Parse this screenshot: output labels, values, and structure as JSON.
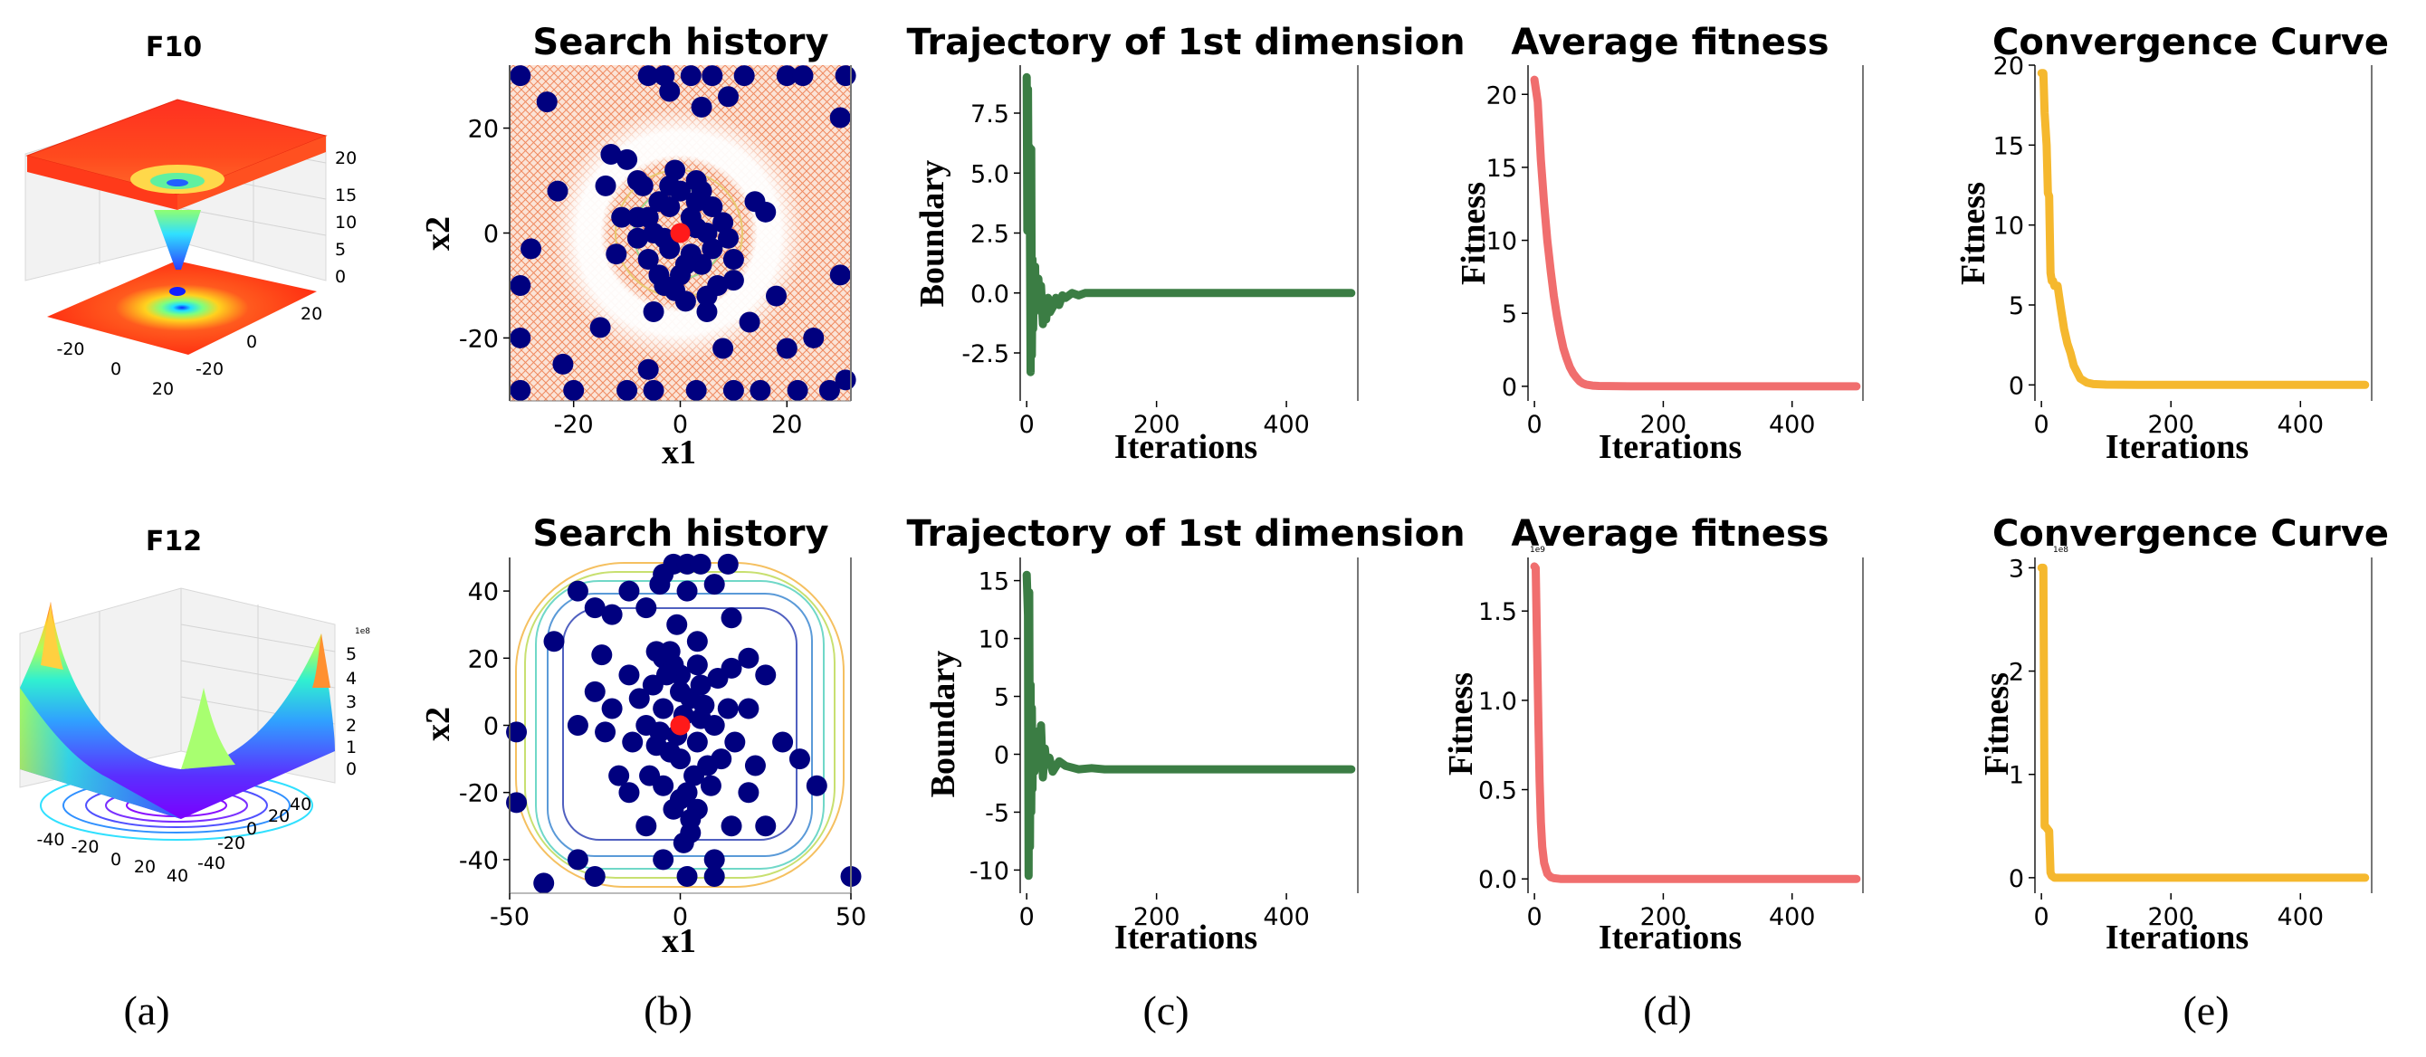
{
  "panel_labels": [
    "(a)",
    "(b)",
    "(c)",
    "(d)",
    "(e)"
  ],
  "colors": {
    "trajectory": "#3b7d44",
    "average": "#f06e6e",
    "convergence": "#f5b82e",
    "search_points": "#00007f",
    "best_point": "#ff1a1a",
    "f10_grid": "#f07a50"
  },
  "chart_data": [
    {
      "id": "f10-surface",
      "type": "surface3d",
      "title": "F10",
      "colormap": "rainbow",
      "xticks": [
        "-20",
        "0",
        "20"
      ],
      "yticks": [
        "20",
        "0",
        "-20"
      ],
      "zticks": [
        "0",
        "5",
        "10",
        "15",
        "20"
      ],
      "zlim": [
        0,
        21
      ]
    },
    {
      "id": "f10-search",
      "type": "scatter",
      "title": "Search history",
      "xlabel": "x1",
      "ylabel": "x2",
      "xlim": [
        -32,
        32
      ],
      "ylim": [
        -32,
        32
      ],
      "xticks": [
        "-20",
        "0",
        "20"
      ],
      "yticks": [
        "20",
        "0",
        "-20"
      ],
      "best": [
        0,
        0
      ],
      "points": [
        [
          -30,
          -30
        ],
        [
          -20,
          -30
        ],
        [
          -10,
          -30
        ],
        [
          -5,
          -30
        ],
        [
          3,
          -30
        ],
        [
          10,
          -30
        ],
        [
          15,
          -30
        ],
        [
          22,
          -30
        ],
        [
          28,
          -30
        ],
        [
          -30,
          -20
        ],
        [
          -30,
          -10
        ],
        [
          -30,
          30
        ],
        [
          -25,
          25
        ],
        [
          -6,
          30
        ],
        [
          -3,
          30
        ],
        [
          2,
          30
        ],
        [
          6,
          30
        ],
        [
          12,
          30
        ],
        [
          20,
          30
        ],
        [
          23,
          30
        ],
        [
          31,
          30
        ],
        [
          30,
          22
        ],
        [
          -2,
          27
        ],
        [
          4,
          24
        ],
        [
          9,
          26
        ],
        [
          -13,
          15
        ],
        [
          -10,
          14
        ],
        [
          -8,
          10
        ],
        [
          -14,
          9
        ],
        [
          -11,
          3
        ],
        [
          -8,
          -1
        ],
        [
          -12,
          -4
        ],
        [
          14,
          6
        ],
        [
          16,
          4
        ],
        [
          10,
          -5
        ],
        [
          -15,
          -18
        ],
        [
          -22,
          -25
        ],
        [
          -6,
          -26
        ],
        [
          13,
          -17
        ],
        [
          18,
          -12
        ],
        [
          25,
          -20
        ],
        [
          20,
          -22
        ],
        [
          8,
          -22
        ],
        [
          5,
          -15
        ],
        [
          -5,
          -15
        ],
        [
          -23,
          8
        ],
        [
          -28,
          -3
        ],
        [
          31,
          -28
        ],
        [
          30,
          -8
        ],
        [
          -2,
          -3
        ],
        [
          2,
          3
        ],
        [
          -4,
          6
        ],
        [
          4,
          -6
        ],
        [
          0,
          8
        ],
        [
          0,
          -8
        ],
        [
          -5,
          0
        ],
        [
          5,
          0
        ],
        [
          3,
          10
        ],
        [
          -3,
          -10
        ],
        [
          6,
          5
        ],
        [
          -6,
          -5
        ],
        [
          7,
          -10
        ],
        [
          -7,
          9
        ],
        [
          1,
          -13
        ],
        [
          -1,
          12
        ],
        [
          8,
          2
        ],
        [
          -8,
          3
        ],
        [
          2,
          -4
        ],
        [
          -2,
          5
        ],
        [
          4,
          8
        ],
        [
          -4,
          -8
        ],
        [
          6,
          -3
        ],
        [
          -6,
          3
        ],
        [
          3,
          1
        ],
        [
          -3,
          -1
        ],
        [
          1,
          -6
        ],
        [
          -1,
          -11
        ],
        [
          9,
          -1
        ],
        [
          10,
          -9
        ],
        [
          5,
          -12
        ],
        [
          -2,
          9
        ],
        [
          3,
          6
        ]
      ]
    },
    {
      "id": "f10-trajectory",
      "type": "line",
      "title": "Trajectory of 1st dimension",
      "xlabel": "Iterations",
      "ylabel": "Boundary",
      "xlim": [
        -10,
        510
      ],
      "ylim": [
        -4.5,
        9.5
      ],
      "xticks": [
        "0",
        "200",
        "400"
      ],
      "yticks": [
        "7.5",
        "5.0",
        "2.5",
        "0.0",
        "-2.5"
      ],
      "x": [
        0,
        1,
        2,
        3,
        4,
        5,
        6,
        7,
        8,
        9,
        10,
        11,
        12,
        13,
        14,
        15,
        16,
        18,
        20,
        22,
        25,
        28,
        30,
        33,
        36,
        40,
        45,
        50,
        55,
        60,
        70,
        80,
        90,
        100,
        120,
        150,
        200,
        300,
        400,
        500
      ],
      "values": [
        9.0,
        2.6,
        8.5,
        3.5,
        6.1,
        2.5,
        -3.3,
        6.0,
        -2.6,
        1.4,
        -1.5,
        0.8,
        -0.8,
        1.1,
        -0.5,
        0.4,
        -0.6,
        0.6,
        -0.4,
        0.3,
        -1.3,
        -0.4,
        -1.1,
        -0.2,
        -0.8,
        -0.6,
        -0.2,
        -0.5,
        -0.1,
        -0.2,
        0.0,
        -0.1,
        0.0,
        0.0,
        0.0,
        0.0,
        0.0,
        0.0,
        0.0,
        0.0
      ]
    },
    {
      "id": "f10-average",
      "type": "line",
      "title": "Average fitness",
      "xlabel": "Iterations",
      "ylabel": "Fitness",
      "xlim": [
        -10,
        510
      ],
      "ylim": [
        -1.0,
        22.0
      ],
      "xticks": [
        "0",
        "200",
        "400"
      ],
      "yticks": [
        "20",
        "15",
        "10",
        "5",
        "0"
      ],
      "x": [
        0,
        5,
        10,
        15,
        20,
        25,
        30,
        35,
        40,
        45,
        50,
        55,
        60,
        65,
        70,
        75,
        80,
        90,
        100,
        150,
        200,
        300,
        400,
        500
      ],
      "values": [
        21.0,
        19.5,
        15.5,
        12.5,
        10.0,
        8.0,
        6.2,
        4.8,
        3.6,
        2.6,
        1.9,
        1.3,
        0.9,
        0.6,
        0.35,
        0.2,
        0.12,
        0.05,
        0.02,
        0.0,
        0.0,
        0.0,
        0.0,
        0.0
      ]
    },
    {
      "id": "f10-convergence",
      "type": "line",
      "title": "Convergence Curve",
      "xlabel": "Iterations",
      "ylabel": "Fitness",
      "xlim": [
        -10,
        510
      ],
      "ylim": [
        -1.0,
        20.0
      ],
      "xticks": [
        "0",
        "200",
        "400"
      ],
      "yticks": [
        "20",
        "15",
        "10",
        "5",
        "0"
      ],
      "x": [
        0,
        3,
        5,
        8,
        10,
        12,
        14,
        16,
        18,
        20,
        25,
        30,
        35,
        40,
        45,
        50,
        55,
        60,
        70,
        80,
        100,
        150,
        500
      ],
      "values": [
        19.5,
        19.5,
        17.0,
        15.0,
        12.0,
        11.8,
        7.0,
        6.5,
        6.5,
        6.2,
        6.2,
        4.8,
        3.5,
        2.6,
        2.0,
        1.2,
        0.8,
        0.4,
        0.15,
        0.05,
        0.02,
        0.0,
        0.0
      ]
    },
    {
      "id": "f12-surface",
      "type": "surface3d",
      "title": "F12",
      "colormap": "rainbow",
      "xticks": [
        "-40",
        "-20",
        "0",
        "20",
        "40"
      ],
      "yticks": [
        "40",
        "20",
        "0",
        "-20",
        "-40"
      ],
      "zticks": [
        "0",
        "1",
        "2",
        "3",
        "4",
        "5"
      ],
      "zlim": [
        0,
        5.2
      ],
      "zscale": "1e8"
    },
    {
      "id": "f12-search",
      "type": "scatter",
      "title": "Search history",
      "xlabel": "x1",
      "ylabel": "x2",
      "xlim": [
        -50,
        50
      ],
      "ylim": [
        -50,
        50
      ],
      "xticks": [
        "-50",
        "0",
        "50"
      ],
      "yticks": [
        "40",
        "20",
        "0",
        "-20",
        "-40"
      ],
      "best": [
        0,
        0
      ],
      "points": [
        [
          -2,
          48
        ],
        [
          2,
          48
        ],
        [
          6,
          48
        ],
        [
          14,
          48
        ],
        [
          -5,
          45
        ],
        [
          -15,
          40
        ],
        [
          -30,
          40
        ],
        [
          -6,
          42
        ],
        [
          10,
          42
        ],
        [
          2,
          40
        ],
        [
          -25,
          35
        ],
        [
          -20,
          33
        ],
        [
          -10,
          35
        ],
        [
          -1,
          30
        ],
        [
          15,
          32
        ],
        [
          5,
          25
        ],
        [
          -23,
          21
        ],
        [
          -37,
          25
        ],
        [
          -7,
          22
        ],
        [
          -5,
          20
        ],
        [
          -2,
          18
        ],
        [
          0,
          15
        ],
        [
          5,
          18
        ],
        [
          15,
          17
        ],
        [
          20,
          20
        ],
        [
          25,
          15
        ],
        [
          -15,
          15
        ],
        [
          -25,
          10
        ],
        [
          -30,
          0
        ],
        [
          -22,
          -2
        ],
        [
          -18,
          -15
        ],
        [
          -15,
          -20
        ],
        [
          -10,
          -30
        ],
        [
          -30,
          -40
        ],
        [
          -48,
          -23
        ],
        [
          -48,
          -2
        ],
        [
          -40,
          -47
        ],
        [
          -25,
          -45
        ],
        [
          10,
          -45
        ],
        [
          15,
          -30
        ],
        [
          25,
          -30
        ],
        [
          20,
          -20
        ],
        [
          30,
          -5
        ],
        [
          35,
          -10
        ],
        [
          40,
          -18
        ],
        [
          50,
          -45
        ],
        [
          10,
          -40
        ],
        [
          1,
          -35
        ],
        [
          -5,
          -40
        ],
        [
          2,
          -45
        ],
        [
          -5,
          5
        ],
        [
          5,
          -5
        ],
        [
          3,
          8
        ],
        [
          -3,
          -8
        ],
        [
          6,
          2
        ],
        [
          -6,
          -2
        ],
        [
          0,
          -10
        ],
        [
          0,
          10
        ],
        [
          8,
          -12
        ],
        [
          -8,
          12
        ],
        [
          4,
          -15
        ],
        [
          -4,
          15
        ],
        [
          10,
          0
        ],
        [
          -10,
          0
        ],
        [
          2,
          -20
        ],
        [
          -2,
          -25
        ],
        [
          12,
          -10
        ],
        [
          -12,
          8
        ],
        [
          7,
          6
        ],
        [
          -7,
          -6
        ],
        [
          1,
          3
        ],
        [
          -1,
          -3
        ],
        [
          9,
          -18
        ],
        [
          -9,
          -15
        ],
        [
          5,
          -25
        ],
        [
          3,
          -28
        ],
        [
          14,
          5
        ],
        [
          -14,
          -5
        ],
        [
          6,
          12
        ],
        [
          -5,
          -18
        ],
        [
          0,
          -22
        ],
        [
          11,
          14
        ],
        [
          20,
          5
        ],
        [
          22,
          -12
        ],
        [
          -20,
          5
        ],
        [
          3,
          -32
        ],
        [
          -3,
          22
        ],
        [
          16,
          -5
        ]
      ]
    },
    {
      "id": "f12-trajectory",
      "type": "line",
      "title": "Trajectory of 1st dimension",
      "xlabel": "Iterations",
      "ylabel": "Boundary",
      "xlim": [
        -10,
        510
      ],
      "ylim": [
        -12,
        17
      ],
      "xticks": [
        "0",
        "200",
        "400"
      ],
      "yticks": [
        "15",
        "10",
        "5",
        "0",
        "-5",
        "-10"
      ],
      "x": [
        0,
        2,
        3,
        4,
        5,
        6,
        7,
        8,
        9,
        10,
        12,
        14,
        16,
        18,
        20,
        22,
        25,
        28,
        30,
        35,
        40,
        50,
        60,
        80,
        100,
        120,
        200,
        300,
        400,
        500
      ],
      "values": [
        15.5,
        12.0,
        -10.5,
        14.0,
        -8.0,
        6.0,
        -5.0,
        4.0,
        -3.0,
        2.0,
        -1.5,
        1.5,
        -1.0,
        2.0,
        -0.5,
        2.5,
        -2.0,
        0.5,
        -0.8,
        -0.3,
        -1.5,
        -0.6,
        -1.0,
        -1.3,
        -1.2,
        -1.3,
        -1.3,
        -1.3,
        -1.3,
        -1.3
      ]
    },
    {
      "id": "f12-average",
      "type": "line",
      "title": "Average fitness",
      "xlabel": "Iterations",
      "ylabel": "Fitness",
      "xlim": [
        -10,
        510
      ],
      "ylim": [
        -0.08,
        1.8
      ],
      "xticks": [
        "0",
        "200",
        "400"
      ],
      "yticks": [
        "1.5",
        "1.0",
        "0.5",
        "0.0"
      ],
      "scale": "1e9",
      "x": [
        0,
        2,
        4,
        6,
        8,
        10,
        12,
        15,
        20,
        25,
        30,
        40,
        50,
        100,
        200,
        300,
        400,
        500
      ],
      "values": [
        1.75,
        1.74,
        1.3,
        0.9,
        0.55,
        0.32,
        0.18,
        0.09,
        0.03,
        0.01,
        0.004,
        0.0,
        0.0,
        0.0,
        0.0,
        0.0,
        0.0,
        0.0
      ]
    },
    {
      "id": "f12-convergence",
      "type": "line",
      "title": "Convergence Curve",
      "xlabel": "Iterations",
      "ylabel": "Fitness",
      "xlim": [
        -10,
        510
      ],
      "ylim": [
        -0.15,
        3.1
      ],
      "xticks": [
        "0",
        "200",
        "400"
      ],
      "yticks": [
        "3",
        "2",
        "1",
        "0"
      ],
      "scale": "1e8",
      "x": [
        0,
        3,
        5,
        6,
        12,
        14,
        16,
        20,
        500
      ],
      "values": [
        3.0,
        3.0,
        0.5,
        0.5,
        0.45,
        0.05,
        0.02,
        0.0,
        0.0
      ]
    }
  ]
}
